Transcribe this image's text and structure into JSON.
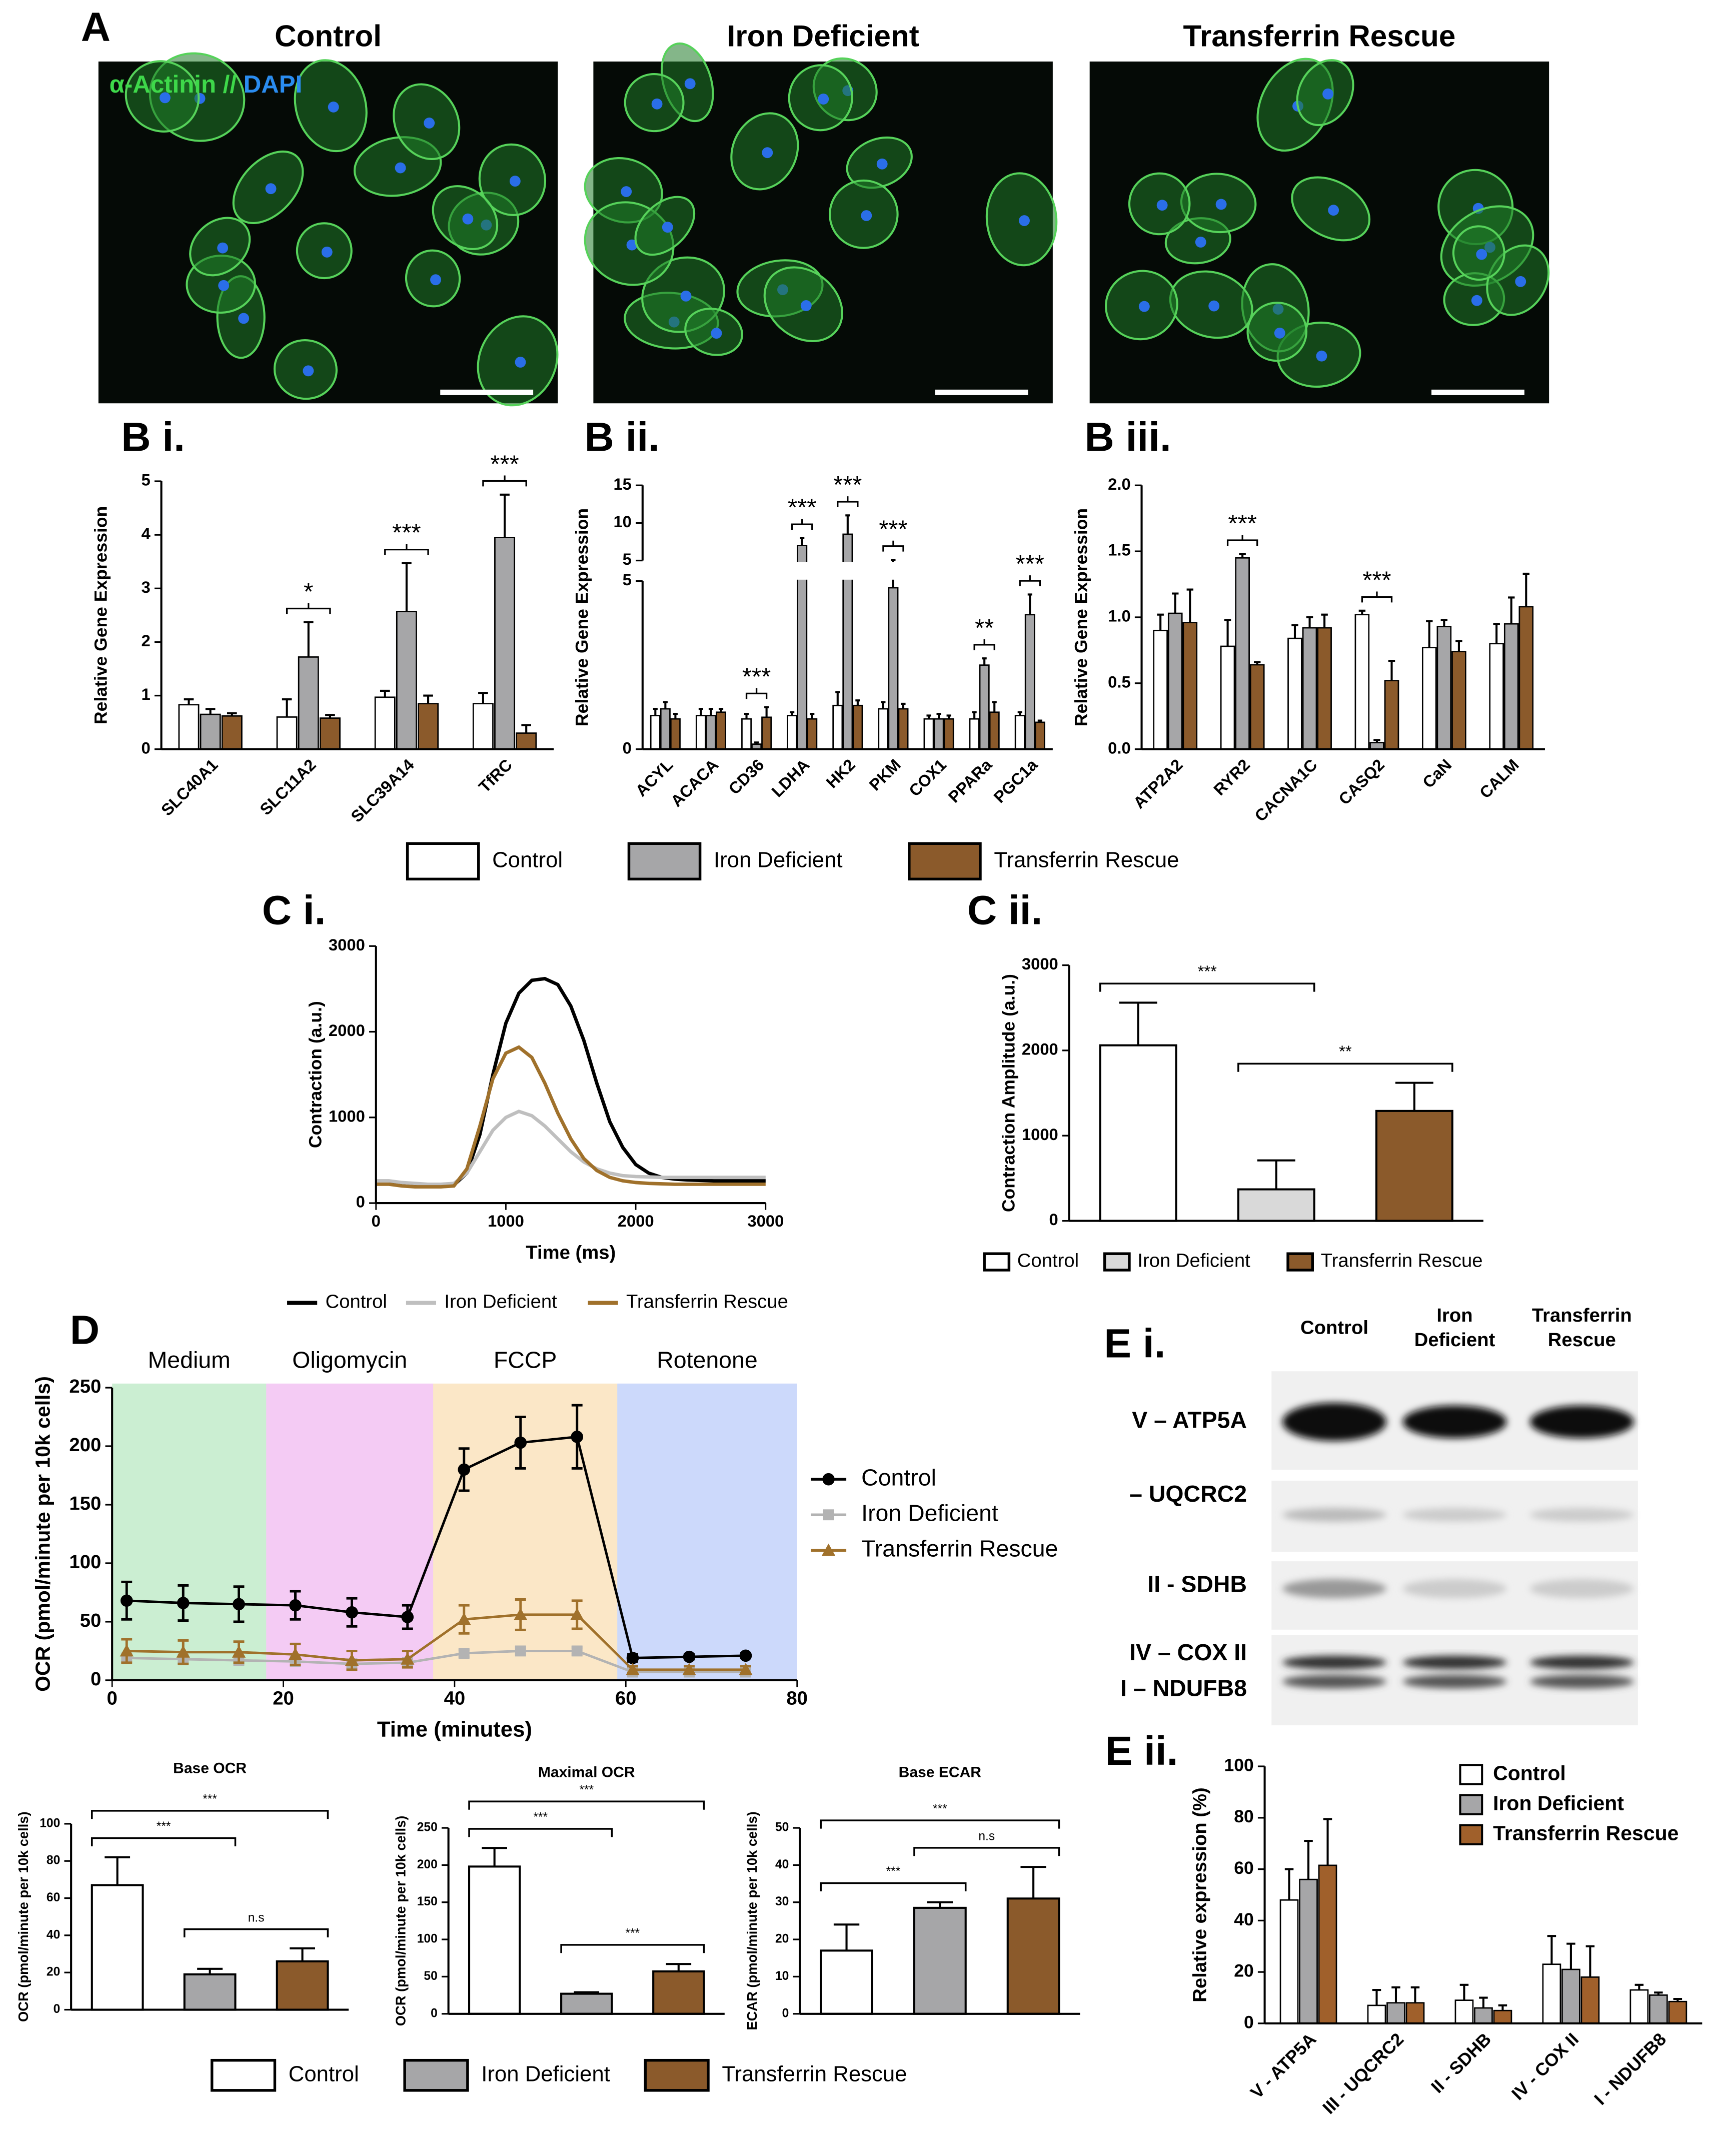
{
  "panels": {
    "A": {
      "label": "A",
      "columns": [
        "Control",
        "Iron Deficient",
        "Transferrin Rescue"
      ],
      "stain": [
        "α-Actinin",
        "//",
        "DAPI"
      ]
    },
    "E_i": {
      "label": "E i.",
      "columns": [
        [
          "Control"
        ],
        [
          "Iron",
          "Deficient"
        ],
        [
          "Transferrin",
          "Rescue"
        ]
      ],
      "rows": [
        "V – ATP5A",
        "– UQCRC2",
        "II - SDHB",
        "IV – COX II",
        "I – NDUFB8"
      ]
    }
  },
  "chart_data": [
    {
      "type": "bar",
      "panel_label": "B i.",
      "y_label": "Relative Gene Expression",
      "categories": [
        "SLC40A1",
        "SLC11A2",
        "SLC39A14",
        "TfRC"
      ],
      "series": [
        {
          "name": "Control",
          "color": "#ffffff",
          "values": [
            0.83,
            0.6,
            0.97,
            0.85
          ],
          "errors": [
            0.1,
            0.33,
            0.12,
            0.2
          ]
        },
        {
          "name": "Iron Deficient",
          "color": "#a6a6a8",
          "values": [
            0.65,
            1.72,
            2.57,
            3.95
          ],
          "errors": [
            0.1,
            0.65,
            0.9,
            0.8
          ]
        },
        {
          "name": "Transferrin Rescue",
          "color": "#8b5a2b",
          "values": [
            0.62,
            0.58,
            0.85,
            0.3
          ],
          "errors": [
            0.05,
            0.06,
            0.15,
            0.15
          ]
        }
      ],
      "ylim": [
        0,
        5
      ],
      "yticks": [
        0,
        1,
        2,
        3,
        4,
        5
      ],
      "annotations": [
        {
          "text": "*",
          "category": 1
        },
        {
          "text": "***",
          "category": 2
        },
        {
          "text": "***",
          "category": 3
        }
      ]
    },
    {
      "type": "bar",
      "panel_label": "B ii.",
      "y_label": "Relative Gene Expression",
      "categories": [
        "ACYL",
        "ACACA",
        "CD36",
        "LDHA",
        "HK2",
        "PKM",
        "COX1",
        "PPARa",
        "PGC1a"
      ],
      "series": [
        {
          "color": "#ffffff",
          "values": [
            1.0,
            1.0,
            0.9,
            1.0,
            1.3,
            1.2,
            0.9,
            0.9,
            1.0
          ],
          "errors": [
            0.2,
            0.2,
            0.15,
            0.1,
            0.4,
            0.2,
            0.1,
            0.2,
            0.1
          ]
        },
        {
          "color": "#a6a6a8",
          "values": [
            1.2,
            1.0,
            0.15,
            7.0,
            8.5,
            4.8,
            0.9,
            2.5,
            4.0
          ],
          "errors": [
            0.2,
            0.2,
            0.05,
            1.0,
            2.5,
            0.3,
            0.15,
            0.2,
            0.6
          ]
        },
        {
          "color": "#8b5a2b",
          "values": [
            0.9,
            1.1,
            0.95,
            0.9,
            1.3,
            1.2,
            0.9,
            1.1,
            0.8
          ],
          "errors": [
            0.15,
            0.1,
            0.3,
            0.15,
            0.15,
            0.15,
            0.1,
            0.3,
            0.05
          ]
        }
      ],
      "ylim": [
        0,
        15
      ],
      "ybreak": 5,
      "yticks": [
        0,
        5,
        10,
        15
      ],
      "annotations": [
        {
          "text": "***",
          "category": 2
        },
        {
          "text": "***",
          "category": 3
        },
        {
          "text": "***",
          "category": 4
        },
        {
          "text": "***",
          "category": 5
        },
        {
          "text": "**",
          "category": 7
        },
        {
          "text": "***",
          "category": 8
        }
      ]
    },
    {
      "type": "bar",
      "panel_label": "B iii.",
      "y_label": "Relative Gene Expression",
      "categories": [
        "ATP2A2",
        "RYR2",
        "CACNA1C",
        "CASQ2",
        "CaN",
        "CALM"
      ],
      "series": [
        {
          "color": "#ffffff",
          "values": [
            0.9,
            0.78,
            0.84,
            1.02,
            0.77,
            0.8
          ],
          "errors": [
            0.12,
            0.2,
            0.1,
            0.03,
            0.2,
            0.15
          ]
        },
        {
          "color": "#a6a6a8",
          "values": [
            1.03,
            1.45,
            0.92,
            0.05,
            0.93,
            0.95
          ],
          "errors": [
            0.15,
            0.03,
            0.08,
            0.02,
            0.05,
            0.2
          ]
        },
        {
          "color": "#8b5a2b",
          "values": [
            0.96,
            0.64,
            0.92,
            0.52,
            0.74,
            1.08
          ],
          "errors": [
            0.25,
            0.02,
            0.1,
            0.15,
            0.08,
            0.25
          ]
        }
      ],
      "ylim": [
        0,
        2
      ],
      "yticks": [
        {
          "value": 0,
          "label": "0.0"
        },
        0.5,
        {
          "value": 1,
          "label": "1.0"
        },
        1.5,
        {
          "value": 2,
          "label": "2.0"
        }
      ],
      "annotations": [
        {
          "text": "***",
          "category": 1
        },
        {
          "text": "***",
          "category": 3
        }
      ]
    },
    {
      "type": "line",
      "panel_label": "C i.",
      "x_label": "Time (ms)",
      "y_label": "Contraction (a.u.)",
      "x": [
        0,
        100,
        200,
        300,
        400,
        500,
        600,
        700,
        800,
        900,
        1000,
        1100,
        1200,
        1300,
        1400,
        1500,
        1600,
        1700,
        1800,
        1900,
        2000,
        2100,
        2200,
        2300,
        2400,
        2500,
        2600,
        2700,
        2800,
        2900,
        3000
      ],
      "series": [
        {
          "name": "Control",
          "color": "#000000",
          "values": [
            230,
            230,
            220,
            210,
            200,
            200,
            210,
            350,
            800,
            1500,
            2100,
            2450,
            2600,
            2620,
            2550,
            2300,
            1900,
            1400,
            950,
            650,
            450,
            350,
            300,
            280,
            270,
            265,
            260,
            260,
            260,
            260,
            260
          ]
        },
        {
          "name": "Iron Deficient",
          "color": "#bfbfbf",
          "values": [
            260,
            260,
            240,
            230,
            220,
            220,
            230,
            350,
            600,
            850,
            1000,
            1070,
            1020,
            900,
            750,
            600,
            480,
            400,
            350,
            320,
            310,
            305,
            300,
            300,
            300,
            300,
            300,
            300,
            300,
            300,
            300
          ]
        },
        {
          "name": "Transferrin Rescue",
          "color": "#a0712b",
          "values": [
            220,
            220,
            200,
            190,
            190,
            190,
            200,
            400,
            900,
            1450,
            1750,
            1820,
            1700,
            1400,
            1050,
            750,
            520,
            380,
            300,
            260,
            240,
            230,
            225,
            220,
            220,
            220,
            220,
            220,
            220,
            220,
            220
          ]
        }
      ],
      "xlim": [
        0,
        3000
      ],
      "xticks": [
        0,
        1000,
        2000,
        3000
      ],
      "ylim": [
        0,
        3000
      ],
      "yticks": [
        0,
        1000,
        2000,
        3000
      ]
    },
    {
      "type": "bar",
      "panel_label": "C ii.",
      "y_label": "Contraction Amplitude (a.u.)",
      "series": [
        {
          "name": "Control",
          "color": "#ffffff",
          "values": [
            2060
          ],
          "errors": [
            500
          ]
        },
        {
          "name": "Iron Deficient",
          "color": "#d9d9d9",
          "values": [
            370
          ],
          "errors": [
            340
          ]
        },
        {
          "name": "Transferrin Rescue",
          "color": "#8b5a2b",
          "values": [
            1290
          ],
          "errors": [
            330
          ]
        }
      ],
      "ylim": [
        0,
        3000
      ],
      "yticks": [
        0,
        1000,
        2000,
        3000
      ],
      "annotations": [
        {
          "text": "***",
          "from": 0,
          "to": 1
        },
        {
          "text": "**",
          "from": 1,
          "to": 2
        }
      ]
    },
    {
      "type": "line",
      "panel_label": "D",
      "x_label": "Time (minutes)",
      "y_label": "OCR (pmol/minute per 10k cells)",
      "phases": [
        {
          "label": "Medium",
          "color": "#2ebd4a",
          "range": [
            0,
            18
          ]
        },
        {
          "label": "Oligomycin",
          "color": "#d42fd4",
          "range": [
            18,
            37.5
          ]
        },
        {
          "label": "FCCP",
          "color": "#f0a020",
          "range": [
            37.5,
            59
          ]
        },
        {
          "label": "Rotenone",
          "color": "#3366ee",
          "range": [
            59,
            80
          ]
        }
      ],
      "x": [
        1.7,
        8.3,
        14.8,
        21.4,
        28,
        34.5,
        41.1,
        47.7,
        54.3,
        60.8,
        67.4,
        74
      ],
      "series": [
        {
          "name": "Control",
          "color": "#000000",
          "marker": "circle",
          "values": [
            68,
            66,
            65,
            64,
            58,
            54,
            180,
            203,
            208,
            19,
            20,
            21
          ],
          "errors": [
            16,
            15,
            15,
            12,
            12,
            10,
            18,
            22,
            27,
            3,
            2,
            2
          ]
        },
        {
          "name": "Iron Deficient",
          "color": "#b3b3b3",
          "marker": "square",
          "values": [
            19,
            18,
            17,
            16,
            14,
            15,
            23,
            25,
            25,
            7,
            7,
            7
          ],
          "errors": [
            3,
            3,
            3,
            3,
            3,
            3,
            3,
            3,
            3,
            3,
            3,
            3
          ]
        },
        {
          "name": "Transferrin Rescue",
          "color": "#a0712b",
          "marker": "triangle",
          "values": [
            25,
            24,
            24,
            22,
            17,
            18,
            52,
            56,
            56,
            9,
            9,
            9
          ],
          "errors": [
            10,
            10,
            9,
            9,
            8,
            7,
            12,
            13,
            12,
            3,
            3,
            3
          ]
        }
      ],
      "xlim": [
        0,
        80
      ],
      "xticks": [
        0,
        20,
        40,
        60,
        80
      ],
      "ylim": [
        0,
        250
      ],
      "yticks": [
        0,
        50,
        100,
        150,
        200,
        250
      ]
    },
    {
      "type": "bar",
      "title": "Base OCR",
      "y_label": "OCR (pmol/minute per 10k cells)",
      "series": [
        {
          "name": "Control",
          "color": "#ffffff",
          "values": [
            67
          ],
          "errors": [
            15
          ]
        },
        {
          "name": "Iron Deficient",
          "color": "#a6a6a8",
          "values": [
            19
          ],
          "errors": [
            3
          ]
        },
        {
          "name": "Transferrin Rescue",
          "color": "#8b5a2b",
          "values": [
            26
          ],
          "errors": [
            7
          ]
        }
      ],
      "ylim": [
        0,
        100
      ],
      "yticks": [
        0,
        20,
        40,
        60,
        80,
        100
      ],
      "annotations": [
        {
          "text": "***",
          "from": 0,
          "to": 1
        },
        {
          "text": "***",
          "from": 0,
          "to": 2
        },
        {
          "text": "n.s",
          "from": 1,
          "to": 2
        }
      ]
    },
    {
      "type": "bar",
      "title": "Maximal OCR",
      "y_label": "OCR (pmol/minute per 10k cells)",
      "series": [
        {
          "color": "#ffffff",
          "values": [
            198
          ],
          "errors": [
            25
          ]
        },
        {
          "color": "#a6a6a8",
          "values": [
            27
          ],
          "errors": [
            2
          ]
        },
        {
          "color": "#8b5a2b",
          "values": [
            57
          ],
          "errors": [
            10
          ]
        }
      ],
      "ylim": [
        0,
        250
      ],
      "yticks": [
        0,
        50,
        100,
        150,
        200,
        250
      ],
      "annotations": [
        {
          "text": "***",
          "from": 0,
          "to": 1
        },
        {
          "text": "***",
          "from": 0,
          "to": 2
        },
        {
          "text": "***",
          "from": 1,
          "to": 2
        }
      ]
    },
    {
      "type": "bar",
      "title": "Base ECAR",
      "y_label": "ECAR (pmol/minute per 10k cells)",
      "series": [
        {
          "color": "#ffffff",
          "values": [
            17
          ],
          "errors": [
            7
          ]
        },
        {
          "color": "#a6a6a8",
          "values": [
            28.5
          ],
          "errors": [
            1.5
          ]
        },
        {
          "color": "#8b5a2b",
          "values": [
            31
          ],
          "errors": [
            8.5
          ]
        }
      ],
      "ylim": [
        0,
        50
      ],
      "yticks": [
        0,
        10,
        20,
        30,
        40,
        50
      ],
      "annotations": [
        {
          "text": "***",
          "from": 0,
          "to": 1
        },
        {
          "text": "***",
          "from": 0,
          "to": 2
        },
        {
          "text": "n.s",
          "from": 1,
          "to": 2
        }
      ]
    },
    {
      "type": "bar",
      "panel_label": "E ii.",
      "y_label": "Relative expression (%)",
      "categories": [
        "V - ATP5A",
        "III - UQCRC2",
        "II - SDHB",
        "IV - COX II",
        "I - NDUFB8"
      ],
      "series": [
        {
          "name": "Control",
          "color": "#ffffff",
          "values": [
            48,
            7,
            9,
            23,
            13
          ],
          "errors": [
            12,
            6,
            6,
            11,
            2
          ]
        },
        {
          "name": "Iron Deficient",
          "color": "#a6a6a8",
          "values": [
            56,
            8,
            6,
            21,
            11
          ],
          "errors": [
            15,
            6,
            4,
            10,
            1
          ]
        },
        {
          "name": "Transferrin Rescue",
          "color": "#a0602b",
          "values": [
            61.5,
            8,
            5,
            18,
            8.5
          ],
          "errors": [
            18,
            6,
            2,
            12,
            1
          ]
        }
      ],
      "ylim": [
        0,
        100
      ],
      "yticks": [
        0,
        20,
        40,
        60,
        80,
        100
      ]
    }
  ]
}
